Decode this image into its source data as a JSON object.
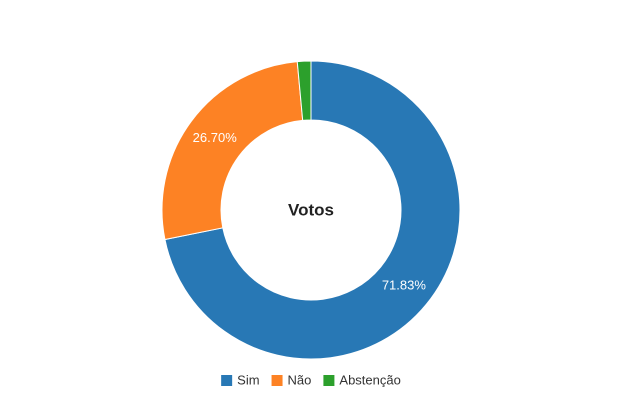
{
  "chart_data": {
    "type": "donut",
    "title": "Votos",
    "categories": [
      "Sim",
      "Não",
      "Abstenção"
    ],
    "values": [
      71.83,
      26.7,
      1.47
    ],
    "value_labels": [
      "71.83%",
      "26.70%",
      null
    ],
    "colors": [
      "#2878b5",
      "#fd8224",
      "#2ca02c"
    ]
  }
}
